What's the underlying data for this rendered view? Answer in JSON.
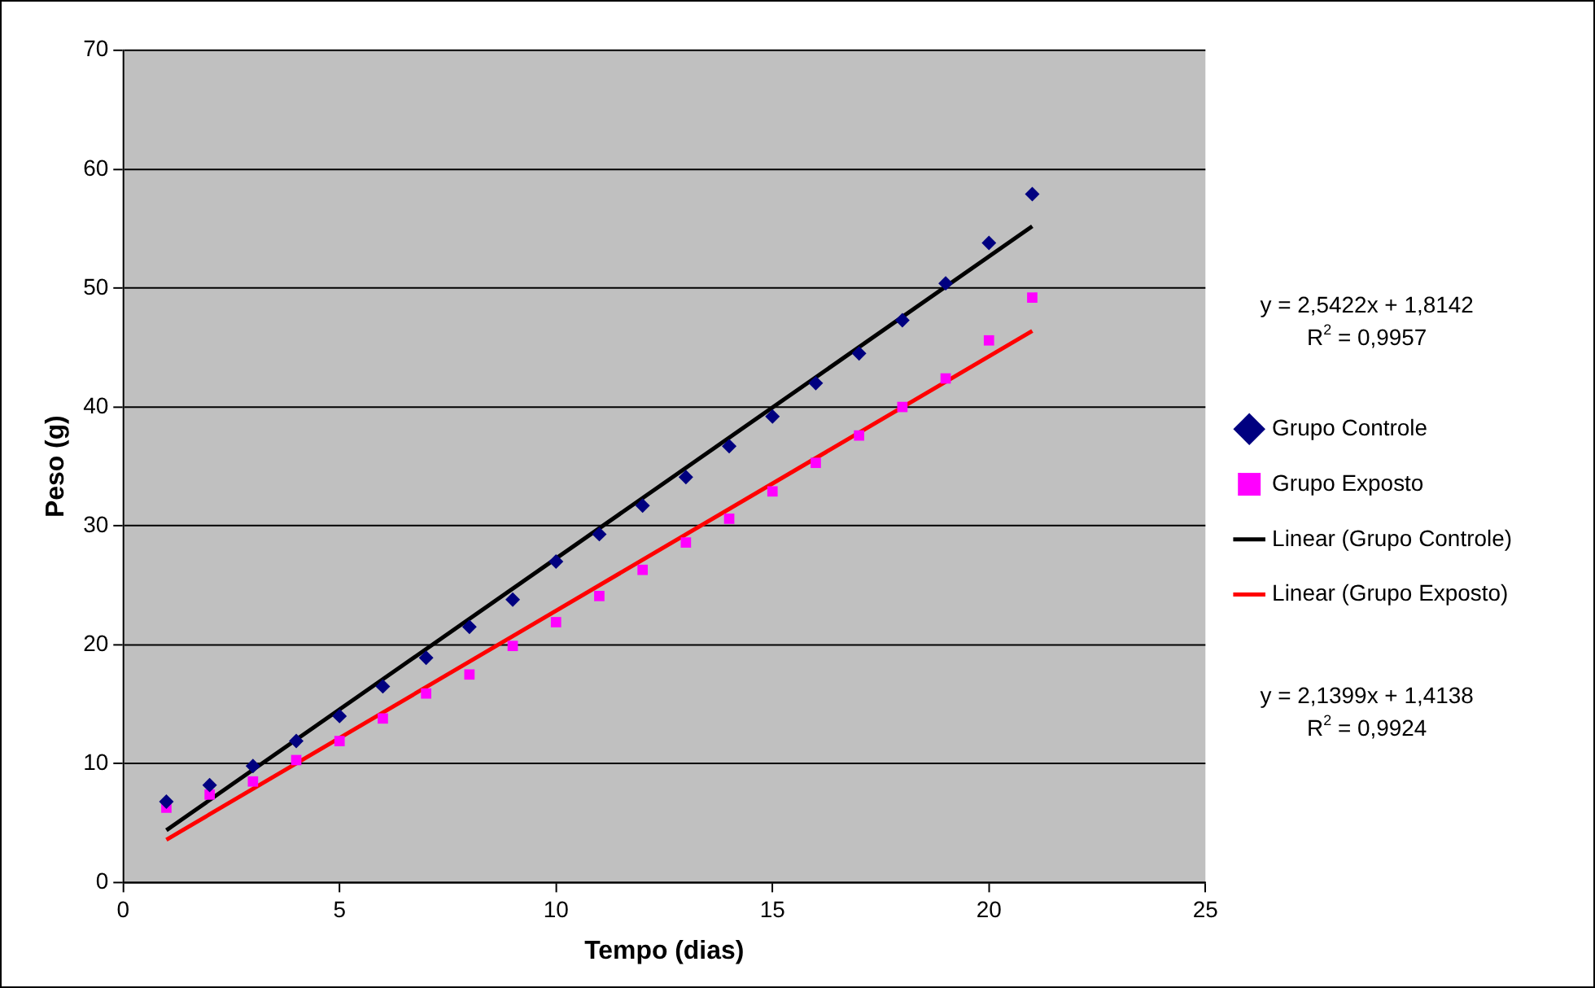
{
  "chart_data": {
    "type": "scatter",
    "xlabel": "Tempo (dias)",
    "ylabel": "Peso (g)",
    "xlim": [
      0,
      25
    ],
    "xticks": [
      0,
      5,
      10,
      15,
      20,
      25
    ],
    "ylim": [
      0,
      70
    ],
    "yticks": [
      0,
      10,
      20,
      30,
      40,
      50,
      60,
      70
    ],
    "grid": "y",
    "legend": "right",
    "annotations": [
      "y = 2,5422x + 1,8142\nR$^{2}$ = 0,9957",
      "y = 2,1399x + 1,4138\nR$^{2}$ = 0,9924"
    ],
    "series": [
      {
        "name": "Grupo Controle",
        "type": "scatter",
        "marker": "diamond",
        "color": "#000080",
        "x": [
          1,
          2,
          3,
          4,
          5,
          6,
          7,
          8,
          9,
          10,
          11,
          12,
          13,
          14,
          15,
          16,
          17,
          18,
          19,
          20,
          21
        ],
        "values": [
          6.8,
          8.2,
          9.8,
          11.9,
          14,
          16.5,
          18.9,
          21.5,
          23.8,
          27,
          29.3,
          31.7,
          34.1,
          36.7,
          39.2,
          42,
          44.5,
          47.3,
          50.4,
          53.8,
          57.9
        ]
      },
      {
        "name": "Grupo Exposto",
        "type": "scatter",
        "marker": "square",
        "color": "#ff00ff",
        "x": [
          1,
          2,
          3,
          4,
          5,
          6,
          7,
          8,
          9,
          10,
          11,
          12,
          13,
          14,
          15,
          16,
          17,
          18,
          19,
          20,
          21
        ],
        "values": [
          6.3,
          7.4,
          8.5,
          10.3,
          11.9,
          13.8,
          15.9,
          17.5,
          19.9,
          21.9,
          24.1,
          26.3,
          28.6,
          30.6,
          32.9,
          35.3,
          37.6,
          40,
          42.4,
          45.6,
          49.2
        ]
      },
      {
        "name": "Linear (Grupo Controle)",
        "type": "line",
        "marker": "none",
        "line_style": "solid",
        "color": "#000000",
        "x": [
          1,
          21
        ],
        "values": [
          4.4,
          55.2
        ]
      },
      {
        "name": "Linear (Grupo Exposto)",
        "type": "line",
        "marker": "none",
        "line_style": "solid",
        "color": "#ff0000",
        "x": [
          1,
          21
        ],
        "values": [
          3.6,
          46.4
        ]
      }
    ]
  }
}
